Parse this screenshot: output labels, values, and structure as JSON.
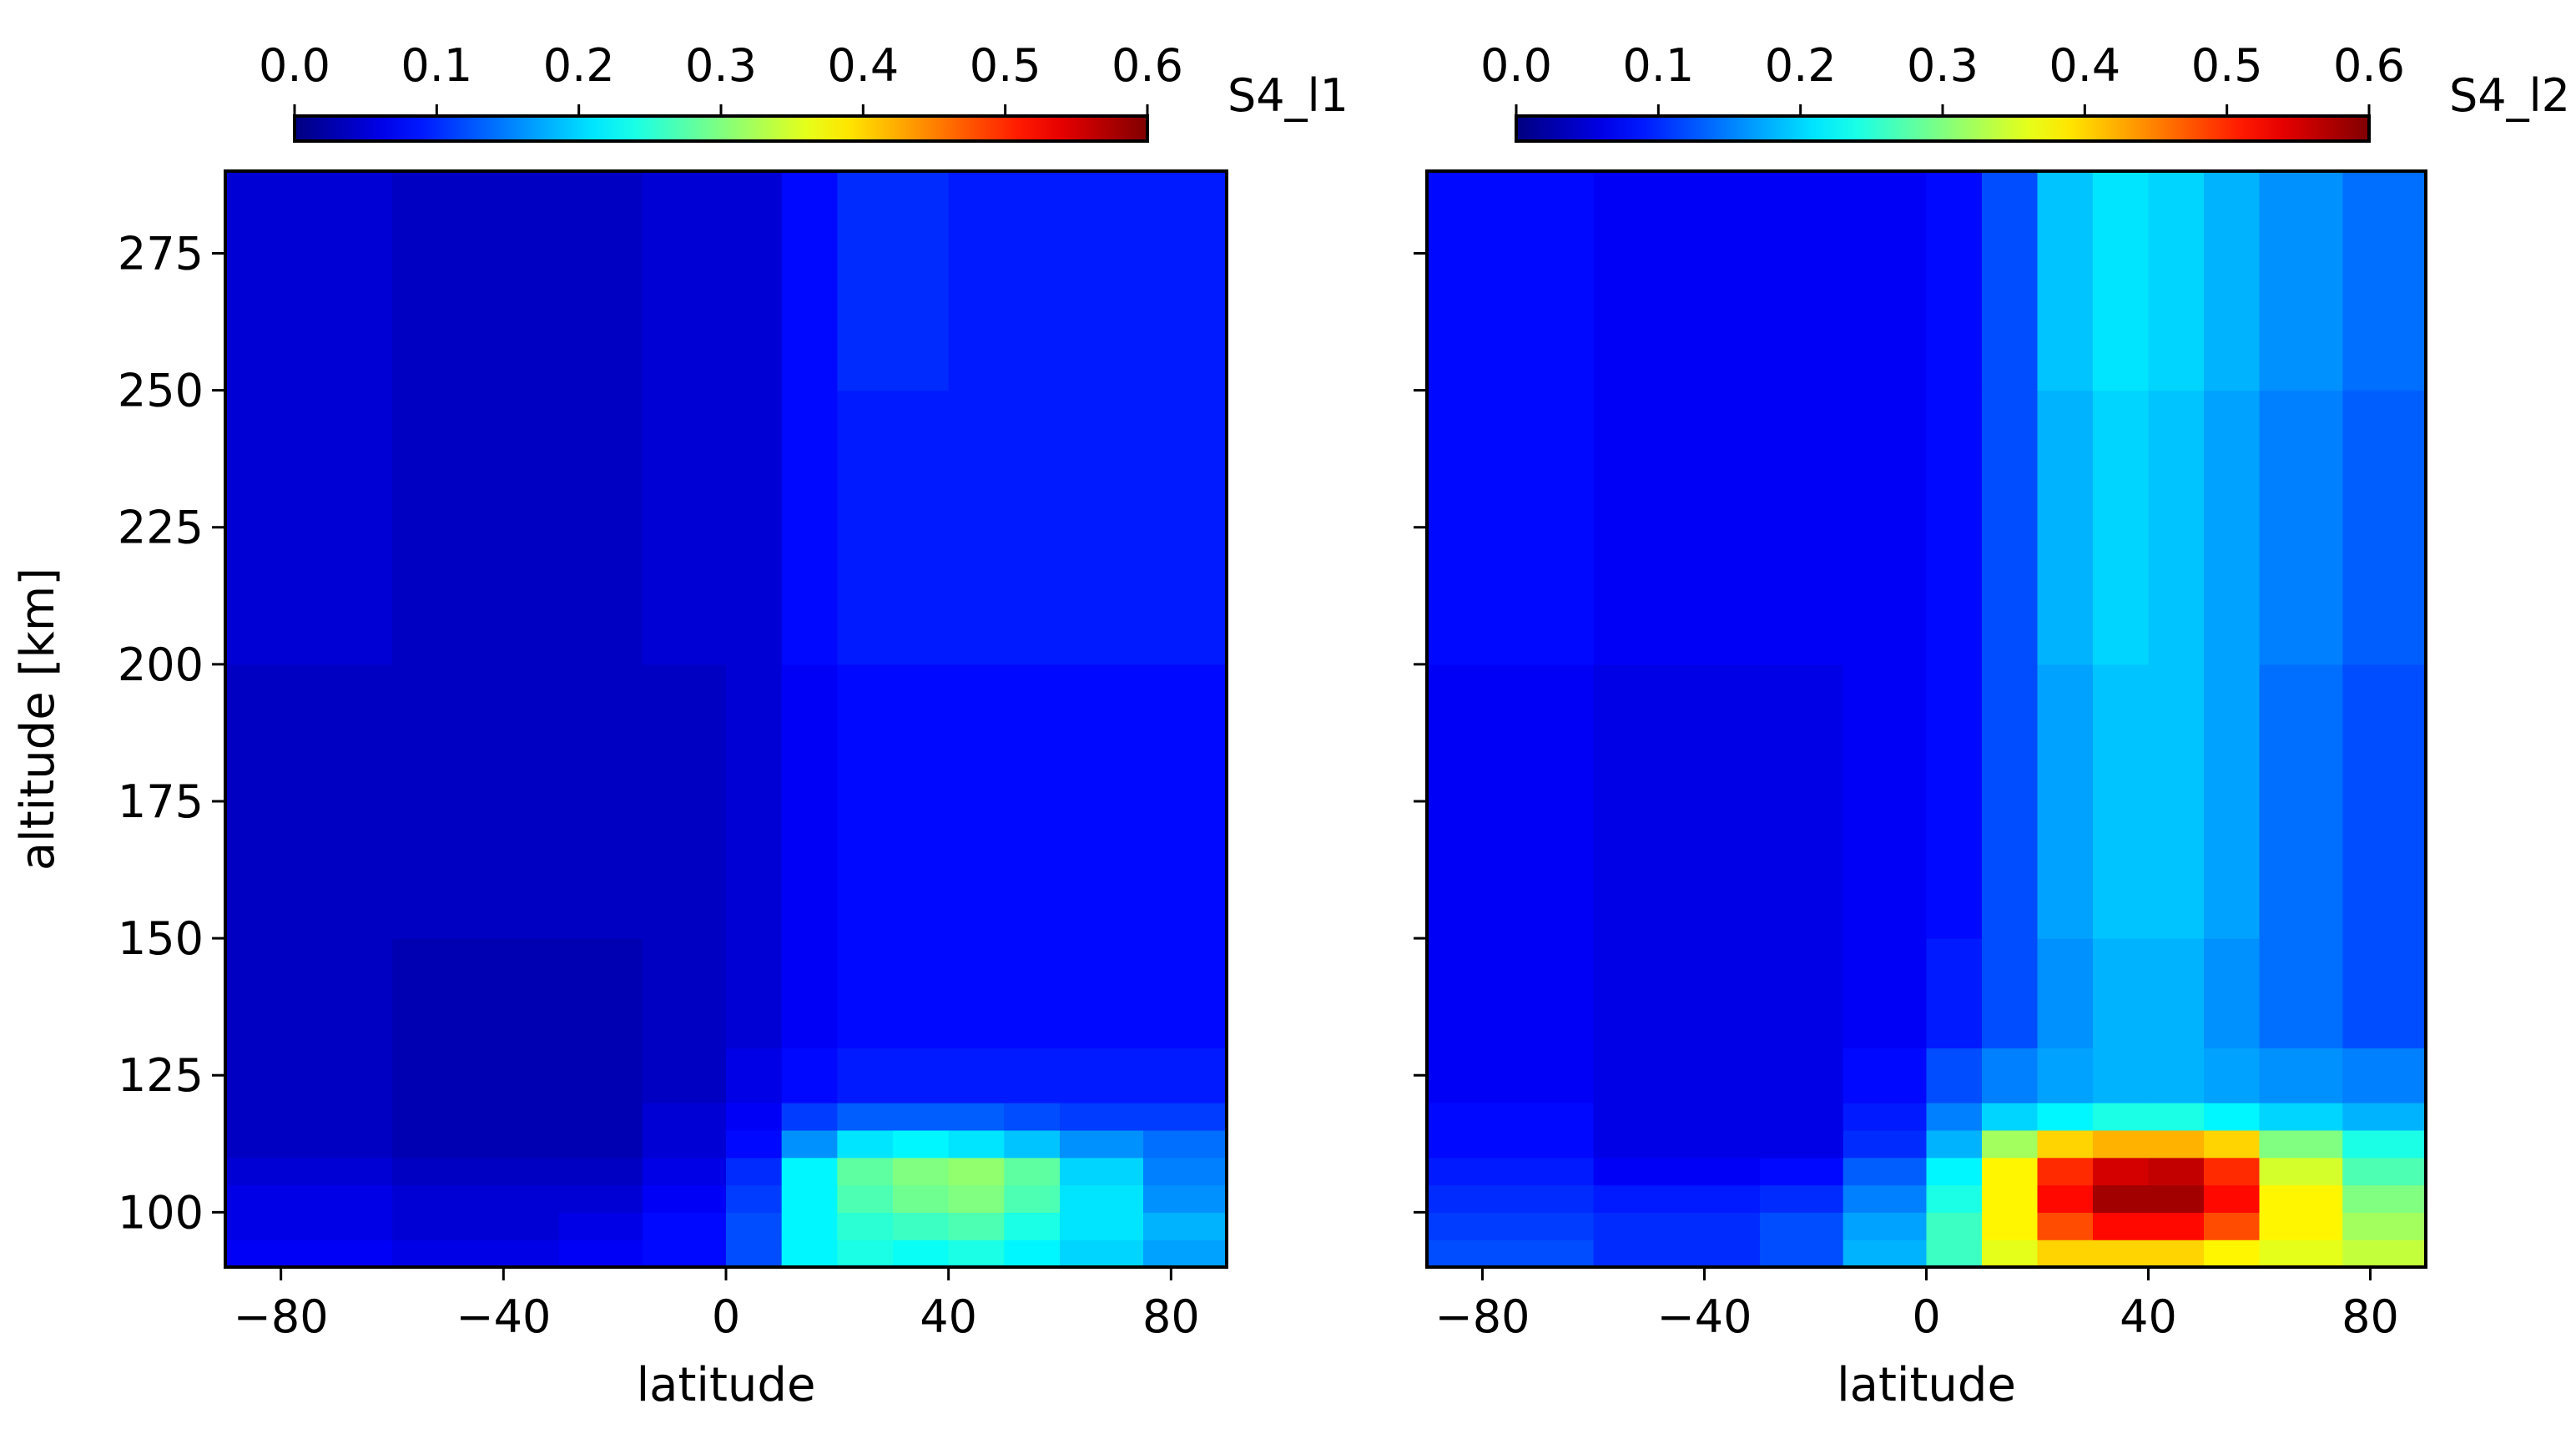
{
  "chart_data": [
    {
      "type": "heatmap",
      "panel": "left",
      "title": "",
      "colorbar_label": "S4_l1",
      "colormap": "jet",
      "colorbar_range": [
        0.0,
        0.6
      ],
      "colorbar_ticks": [
        "0.0",
        "0.1",
        "0.2",
        "0.3",
        "0.4",
        "0.5",
        "0.6"
      ],
      "xlabel": "latitude",
      "ylabel": "altitude [km]",
      "xlim": [
        -90,
        90
      ],
      "ylim": [
        90,
        290
      ],
      "xticks": [
        -80,
        -40,
        0,
        40,
        80
      ],
      "xtick_labels": [
        "−80",
        "−40",
        "0",
        "40",
        "80"
      ],
      "yticks": [
        100,
        125,
        150,
        175,
        200,
        225,
        250,
        275
      ],
      "ytick_labels": [
        "100",
        "125",
        "150",
        "175",
        "200",
        "225",
        "250",
        "275"
      ],
      "x_bin_edges": [
        -90,
        -60,
        -30,
        -15,
        0,
        10,
        20,
        30,
        40,
        50,
        60,
        75,
        90
      ],
      "y_bin_edges": [
        90,
        95,
        100,
        105,
        110,
        115,
        120,
        130,
        150,
        200,
        250,
        290
      ],
      "values": [
        [
          0.07,
          0.06,
          0.07,
          0.08,
          0.12,
          0.22,
          0.24,
          0.23,
          0.24,
          0.22,
          0.2,
          0.17
        ],
        [
          0.06,
          0.05,
          0.06,
          0.08,
          0.12,
          0.22,
          0.25,
          0.26,
          0.27,
          0.24,
          0.21,
          0.18
        ],
        [
          0.06,
          0.05,
          0.05,
          0.07,
          0.11,
          0.22,
          0.27,
          0.29,
          0.3,
          0.27,
          0.21,
          0.16
        ],
        [
          0.05,
          0.04,
          0.04,
          0.06,
          0.1,
          0.22,
          0.28,
          0.3,
          0.31,
          0.28,
          0.2,
          0.15
        ],
        [
          0.04,
          0.03,
          0.03,
          0.05,
          0.08,
          0.16,
          0.21,
          0.22,
          0.21,
          0.19,
          0.16,
          0.14
        ],
        [
          0.04,
          0.03,
          0.03,
          0.05,
          0.07,
          0.11,
          0.13,
          0.13,
          0.13,
          0.12,
          0.11,
          0.11
        ],
        [
          0.04,
          0.03,
          0.03,
          0.04,
          0.06,
          0.08,
          0.09,
          0.09,
          0.09,
          0.09,
          0.09,
          0.09
        ],
        [
          0.04,
          0.03,
          0.03,
          0.04,
          0.05,
          0.07,
          0.08,
          0.08,
          0.08,
          0.08,
          0.08,
          0.08
        ],
        [
          0.04,
          0.04,
          0.04,
          0.04,
          0.05,
          0.07,
          0.08,
          0.08,
          0.08,
          0.08,
          0.08,
          0.08
        ],
        [
          0.05,
          0.04,
          0.04,
          0.05,
          0.05,
          0.08,
          0.09,
          0.09,
          0.09,
          0.09,
          0.09,
          0.09
        ],
        [
          0.05,
          0.04,
          0.04,
          0.05,
          0.05,
          0.08,
          0.1,
          0.1,
          0.09,
          0.09,
          0.09,
          0.09
        ]
      ]
    },
    {
      "type": "heatmap",
      "panel": "right",
      "title": "",
      "colorbar_label": "S4_l2",
      "colormap": "jet",
      "colorbar_range": [
        0.0,
        0.6
      ],
      "colorbar_ticks": [
        "0.0",
        "0.1",
        "0.2",
        "0.3",
        "0.4",
        "0.5",
        "0.6"
      ],
      "xlabel": "latitude",
      "ylabel": "",
      "xlim": [
        -90,
        90
      ],
      "ylim": [
        90,
        290
      ],
      "xticks": [
        -80,
        -40,
        0,
        40,
        80
      ],
      "xtick_labels": [
        "−80",
        "−40",
        "0",
        "40",
        "80"
      ],
      "yticks": [
        100,
        125,
        150,
        175,
        200,
        225,
        250,
        275
      ],
      "ytick_labels": [
        "100",
        "125",
        "150",
        "175",
        "200",
        "225",
        "250",
        "275"
      ],
      "x_bin_edges": [
        -90,
        -60,
        -30,
        -15,
        0,
        10,
        20,
        30,
        40,
        50,
        60,
        75,
        90
      ],
      "y_bin_edges": [
        90,
        95,
        100,
        105,
        110,
        115,
        120,
        130,
        150,
        200,
        250,
        290
      ],
      "values": [
        [
          0.12,
          0.1,
          0.12,
          0.18,
          0.26,
          0.36,
          0.4,
          0.4,
          0.4,
          0.38,
          0.36,
          0.34
        ],
        [
          0.11,
          0.1,
          0.12,
          0.17,
          0.26,
          0.38,
          0.48,
          0.52,
          0.52,
          0.48,
          0.38,
          0.32
        ],
        [
          0.1,
          0.09,
          0.1,
          0.15,
          0.24,
          0.38,
          0.52,
          0.58,
          0.58,
          0.52,
          0.38,
          0.3
        ],
        [
          0.09,
          0.07,
          0.08,
          0.13,
          0.22,
          0.38,
          0.5,
          0.55,
          0.56,
          0.5,
          0.35,
          0.27
        ],
        [
          0.08,
          0.06,
          0.06,
          0.1,
          0.18,
          0.32,
          0.4,
          0.42,
          0.42,
          0.4,
          0.3,
          0.24
        ],
        [
          0.08,
          0.06,
          0.06,
          0.09,
          0.15,
          0.2,
          0.22,
          0.24,
          0.24,
          0.22,
          0.2,
          0.18
        ],
        [
          0.07,
          0.06,
          0.06,
          0.08,
          0.12,
          0.15,
          0.17,
          0.18,
          0.18,
          0.17,
          0.16,
          0.15
        ],
        [
          0.07,
          0.06,
          0.06,
          0.07,
          0.09,
          0.12,
          0.16,
          0.18,
          0.18,
          0.16,
          0.14,
          0.12
        ],
        [
          0.07,
          0.06,
          0.06,
          0.07,
          0.08,
          0.12,
          0.17,
          0.19,
          0.19,
          0.17,
          0.14,
          0.12
        ],
        [
          0.08,
          0.07,
          0.07,
          0.07,
          0.08,
          0.12,
          0.18,
          0.2,
          0.19,
          0.17,
          0.15,
          0.13
        ],
        [
          0.08,
          0.07,
          0.07,
          0.07,
          0.08,
          0.12,
          0.19,
          0.21,
          0.2,
          0.18,
          0.16,
          0.14
        ]
      ]
    }
  ]
}
